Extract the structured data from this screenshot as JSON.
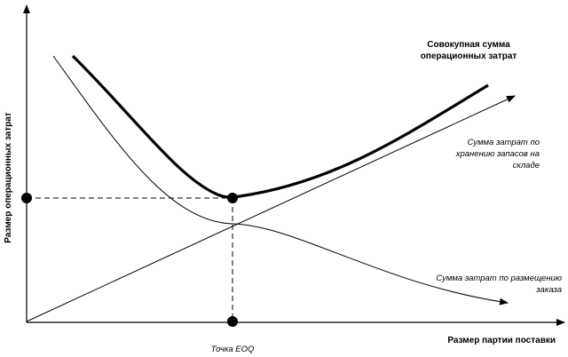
{
  "diagram": {
    "y_axis_label": "Размер операционных затрат",
    "x_axis_label": "Размер партии поставки",
    "eoq_label": "Точка EOQ",
    "total_cost_label": [
      "Совокупная сумма",
      "операционных затрат"
    ],
    "holding_cost_label": [
      "Сумма затрат по",
      "хранению запасов на",
      "складе"
    ],
    "ordering_cost_label": [
      "Сумма затрат по размещению",
      "заказа"
    ]
  }
}
